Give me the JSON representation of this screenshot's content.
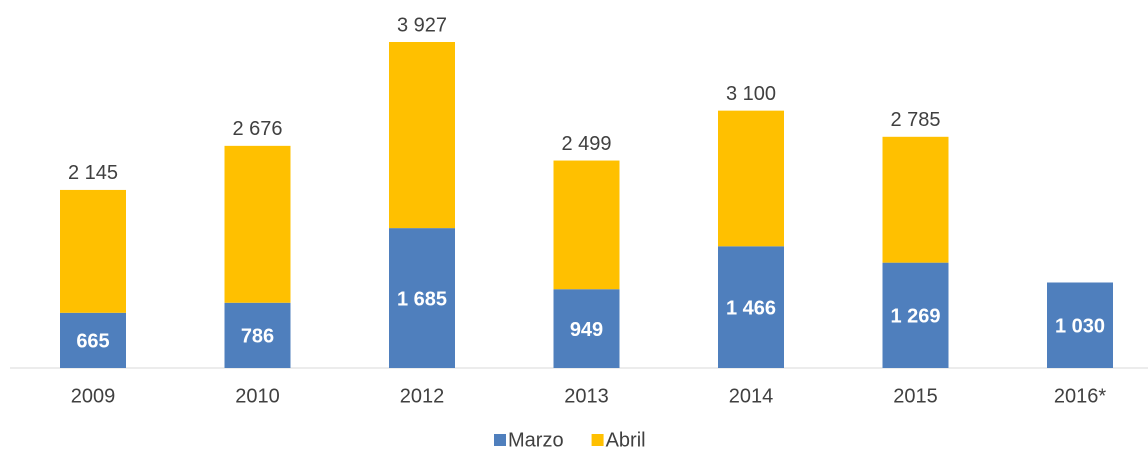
{
  "chart_data": {
    "type": "stacked_bar",
    "categories": [
      "2009",
      "2010",
      "2012",
      "2013",
      "2014",
      "2015",
      "2016*"
    ],
    "series": [
      {
        "name": "Marzo",
        "color": "#4f7fbd",
        "values": [
          665,
          786,
          1685,
          949,
          1466,
          1269,
          1030
        ],
        "value_labels": [
          "665",
          "786",
          "1 685",
          "949",
          "1 466",
          "1 269",
          "1 030"
        ]
      },
      {
        "name": "Abril",
        "color": "#ffc000",
        "values": [
          1480,
          1890,
          2242,
          1550,
          1634,
          1516,
          null
        ]
      }
    ],
    "totals": [
      2145,
      2676,
      3927,
      2499,
      3100,
      2785,
      null
    ],
    "total_labels": [
      "2 145",
      "2 676",
      "3 927",
      "2 499",
      "3 100",
      "2 785",
      null
    ],
    "legend": "bottom"
  }
}
